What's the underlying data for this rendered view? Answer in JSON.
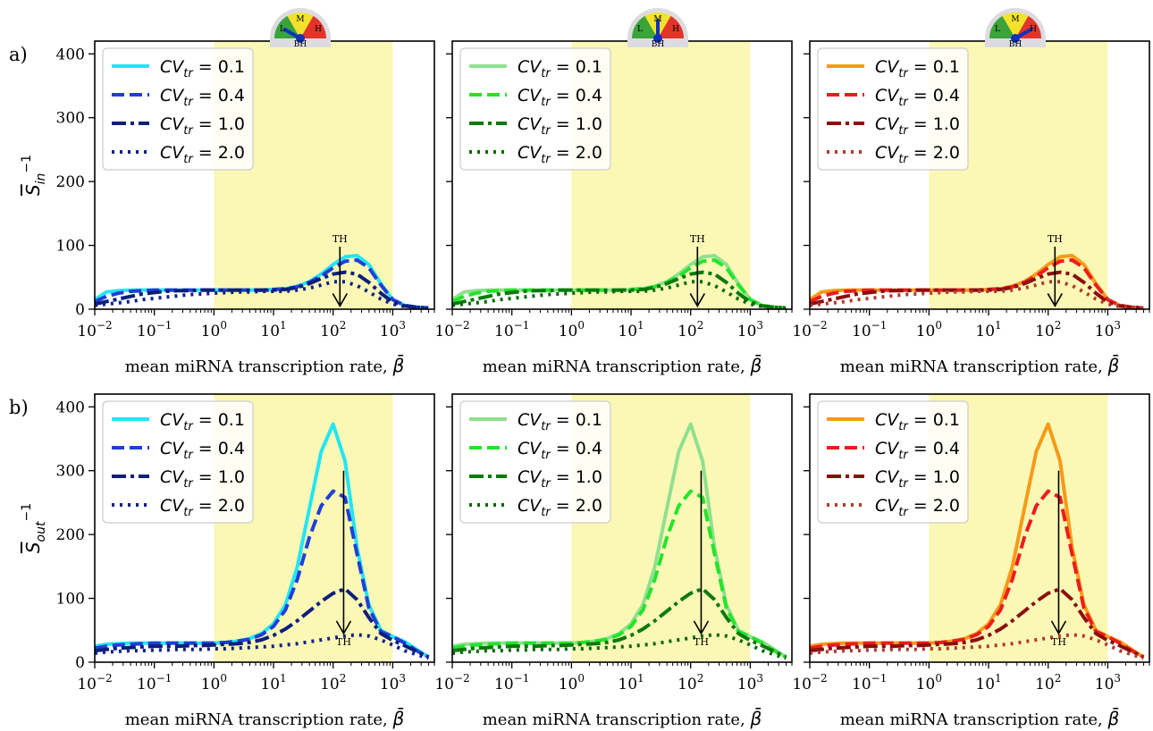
{
  "row_labels": [
    "a)",
    "b)"
  ],
  "gauge": {
    "labels": [
      "L",
      "M",
      "H"
    ],
    "base_label": "BH"
  },
  "annotation": "TH",
  "legend_prefix": "CV",
  "legend_sub": "tr",
  "palettes": [
    {
      "name": "blue",
      "colors": [
        "#22e5f5",
        "#1f3fd6",
        "#0d1f7a",
        "#10208a"
      ]
    },
    {
      "name": "green",
      "colors": [
        "#8fe08f",
        "#22e52a",
        "#0a7a0a",
        "#0a6a0a"
      ]
    },
    {
      "name": "red",
      "colors": [
        "#f79a19",
        "#ee1c1c",
        "#8b0e0e",
        "#b03a2e"
      ]
    }
  ],
  "chart_data": [
    {
      "type": "line",
      "row": "a)",
      "ylabel": "S̄_in^−1",
      "xlabel": "mean miRNA transcription rate, β̄",
      "x_scale": "log",
      "xlim": [
        0.01,
        5000
      ],
      "ylim": [
        0,
        420
      ],
      "x_ticks": [
        "10^-2",
        "10^-1",
        "10^0",
        "10^1",
        "10^2",
        "10^3"
      ],
      "y_ticks": [
        0,
        100,
        200,
        300,
        400
      ],
      "shaded_region": [
        1,
        1000
      ],
      "annotation": {
        "text": "TH",
        "x": 130,
        "y_from": 98,
        "y_to": 5
      },
      "x": [
        0.01,
        0.0158,
        0.0251,
        0.0398,
        0.0631,
        0.1,
        0.1585,
        0.2512,
        0.3981,
        0.631,
        1,
        1.585,
        2.512,
        3.981,
        6.31,
        10,
        15.85,
        25.12,
        39.81,
        63.1,
        100,
        158.5,
        251.2,
        398.1,
        631,
        1000,
        1585,
        2512,
        3981
      ],
      "series": [
        {
          "name": "CV_tr = 0.1",
          "style": "solid",
          "values": [
            15,
            27,
            29,
            30,
            30,
            30,
            30,
            30,
            30,
            30,
            30,
            30,
            30,
            30,
            30,
            31,
            32,
            36,
            43,
            55,
            70,
            82,
            84,
            70,
            40,
            15,
            6,
            3,
            2
          ]
        },
        {
          "name": "CV_tr = 0.4",
          "style": "dashed",
          "values": [
            12,
            20,
            25,
            28,
            29,
            30,
            30,
            30,
            30,
            30,
            30,
            30,
            30,
            30,
            30,
            31,
            32,
            35,
            42,
            52,
            65,
            75,
            77,
            65,
            38,
            15,
            6,
            3,
            2
          ]
        },
        {
          "name": "CV_tr = 1.0",
          "style": "dashdot",
          "values": [
            8,
            12,
            16,
            20,
            24,
            26,
            28,
            29,
            29,
            30,
            30,
            30,
            30,
            30,
            30,
            30,
            31,
            34,
            40,
            48,
            55,
            58,
            55,
            42,
            25,
            11,
            5,
            3,
            2
          ]
        },
        {
          "name": "CV_tr = 2.0",
          "style": "dotted",
          "values": [
            6,
            8,
            10,
            12,
            15,
            17,
            19,
            21,
            23,
            24,
            25,
            26,
            27,
            27,
            28,
            28,
            28,
            30,
            33,
            38,
            43,
            43,
            37,
            27,
            16,
            8,
            4,
            3,
            2
          ]
        }
      ]
    },
    {
      "type": "line",
      "row": "b)",
      "ylabel": "S̄_out^−1",
      "xlabel": "mean miRNA transcription rate, β̄",
      "x_scale": "log",
      "xlim": [
        0.01,
        5000
      ],
      "ylim": [
        0,
        420
      ],
      "x_ticks": [
        "10^-2",
        "10^-1",
        "10^0",
        "10^1",
        "10^2",
        "10^3"
      ],
      "y_ticks": [
        0,
        100,
        200,
        300,
        400
      ],
      "shaded_region": [
        1,
        1000
      ],
      "annotation": {
        "text": "TH",
        "x": 150,
        "y_from": 300,
        "y_to": 45
      },
      "x": [
        0.01,
        0.0158,
        0.0251,
        0.0398,
        0.0631,
        0.1,
        0.1585,
        0.2512,
        0.3981,
        0.631,
        1,
        1.585,
        2.512,
        3.981,
        6.31,
        10,
        15.85,
        25.12,
        39.81,
        63.1,
        100,
        158.5,
        251.2,
        398.1,
        631,
        1000,
        1585,
        2512,
        3981
      ],
      "series": [
        {
          "name": "CV_tr = 0.1",
          "style": "solid",
          "values": [
            25,
            28,
            29,
            30,
            30,
            30,
            30,
            30,
            30,
            30,
            30,
            31,
            33,
            37,
            45,
            60,
            90,
            150,
            240,
            330,
            373,
            315,
            180,
            90,
            50,
            40,
            32,
            20,
            8
          ]
        },
        {
          "name": "CV_tr = 0.4",
          "style": "dashed",
          "values": [
            22,
            25,
            27,
            28,
            29,
            30,
            30,
            30,
            30,
            30,
            30,
            31,
            33,
            36,
            43,
            56,
            82,
            130,
            195,
            245,
            268,
            258,
            170,
            85,
            48,
            40,
            30,
            18,
            8
          ]
        },
        {
          "name": "CV_tr = 1.0",
          "style": "dashdot",
          "values": [
            18,
            20,
            22,
            23,
            24,
            25,
            25,
            25,
            26,
            26,
            27,
            28,
            29,
            31,
            35,
            42,
            52,
            65,
            80,
            95,
            108,
            115,
            98,
            70,
            45,
            34,
            26,
            17,
            8
          ]
        },
        {
          "name": "CV_tr = 2.0",
          "style": "dotted",
          "values": [
            14,
            16,
            17,
            18,
            18,
            19,
            19,
            20,
            20,
            20,
            21,
            21,
            22,
            23,
            24,
            25,
            27,
            29,
            32,
            35,
            38,
            41,
            43,
            41,
            35,
            27,
            18,
            12,
            6
          ]
        }
      ]
    }
  ]
}
